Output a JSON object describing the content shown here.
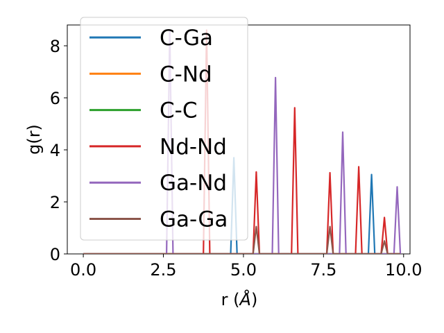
{
  "chart_data": {
    "type": "line",
    "xlabel": "r (",
    "xlabel_unit": "Å",
    "xlabel_close": ")",
    "ylabel": "g(r)",
    "xlim": [
      -0.5,
      10.2
    ],
    "ylim": [
      0,
      8.8
    ],
    "xticks": [
      0.0,
      2.5,
      5.0,
      7.5,
      10.0
    ],
    "xtick_labels": [
      "0.0",
      "2.5",
      "5.0",
      "7.5",
      "10.0"
    ],
    "yticks": [
      0,
      2,
      4,
      6,
      8
    ],
    "ytick_labels": [
      "0",
      "2",
      "4",
      "6",
      "8"
    ],
    "grid": false,
    "legend_position": "upper-left",
    "x_start": 0.0,
    "x_end": 9.9,
    "series": [
      {
        "name": "C-Ga",
        "color": "#1f77b4",
        "peaks": [
          [
            4.7,
            3.7
          ],
          [
            9.0,
            3.05
          ]
        ]
      },
      {
        "name": "C-Nd",
        "color": "#ff7f0e",
        "peaks": []
      },
      {
        "name": "C-C",
        "color": "#2ca02c",
        "peaks": []
      },
      {
        "name": "Nd-Nd",
        "color": "#d62728",
        "peaks": [
          [
            3.85,
            8.6
          ],
          [
            5.4,
            3.15
          ],
          [
            6.6,
            5.62
          ],
          [
            7.7,
            3.12
          ],
          [
            8.6,
            3.35
          ],
          [
            9.4,
            1.4
          ]
        ]
      },
      {
        "name": "Ga-Nd",
        "color": "#9467bd",
        "peaks": [
          [
            2.7,
            8.6
          ],
          [
            6.0,
            6.78
          ],
          [
            8.1,
            4.68
          ],
          [
            9.8,
            2.58
          ]
        ]
      },
      {
        "name": "Ga-Ga",
        "color": "#8c564b",
        "peaks": [
          [
            5.4,
            1.05
          ],
          [
            7.7,
            1.05
          ],
          [
            9.4,
            0.5
          ]
        ]
      }
    ]
  }
}
